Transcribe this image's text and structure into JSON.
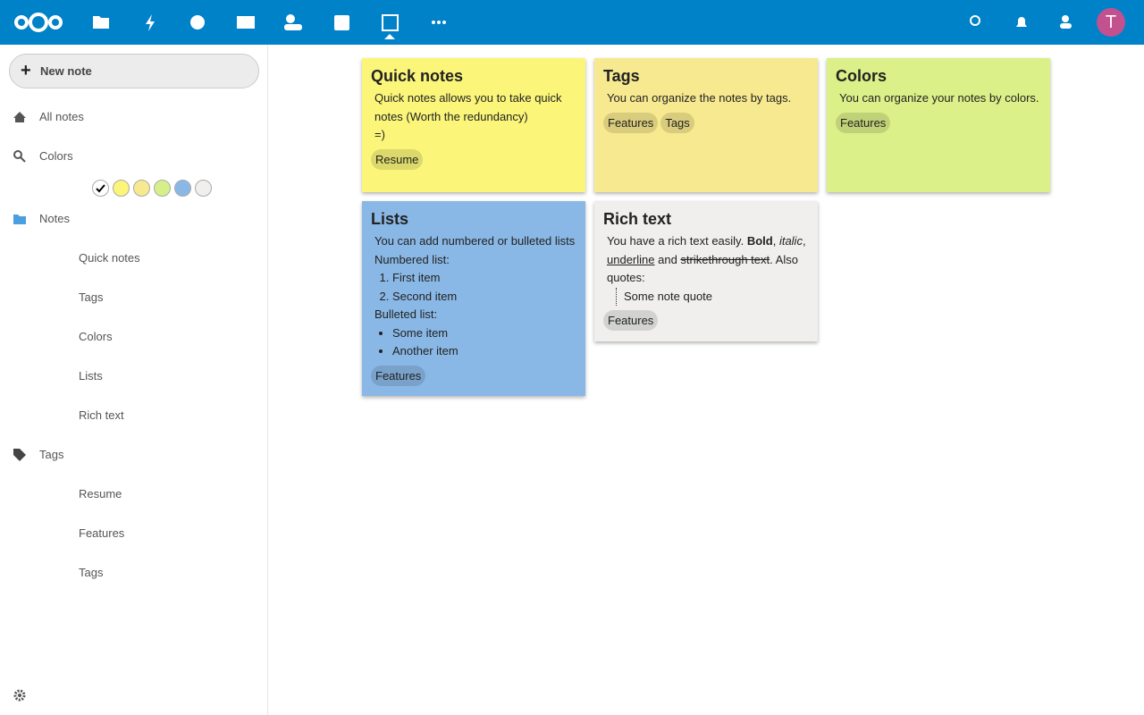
{
  "header": {
    "avatar": "T"
  },
  "sidebar": {
    "new_note": "New note",
    "all_notes": "All notes",
    "colors": "Colors",
    "swatches": [
      "#ffffff",
      "#fbf67a",
      "#f7e98f",
      "#d7ef88",
      "#8ab8e6",
      "#f0efee"
    ],
    "notes": "Notes",
    "note_links": [
      "Quick notes",
      "Tags",
      "Colors",
      "Lists",
      "Rich text"
    ],
    "tags": "Tags",
    "tag_links": [
      "Resume",
      "Features",
      "Tags"
    ]
  },
  "notes": [
    {
      "title": "Quick notes",
      "color": "#fbf67a",
      "content": [
        {
          "type": "p",
          "text": "Quick notes allows you to take quick notes (Worth the redundancy)"
        },
        {
          "type": "p",
          "text": "=)"
        }
      ],
      "tags": [
        "Resume"
      ]
    },
    {
      "title": "Tags",
      "color": "#f7e98f",
      "content": [
        {
          "type": "p",
          "text": "You can organize the notes by tags."
        }
      ],
      "tags": [
        "Features",
        "Tags"
      ]
    },
    {
      "title": "Colors",
      "color": "#dbf088",
      "content": [
        {
          "type": "p",
          "text": "You can organize your notes by colors."
        }
      ],
      "tags": [
        "Features"
      ]
    },
    {
      "title": "Lists",
      "color": "#8ab8e6",
      "content": [
        {
          "type": "p",
          "text": "You can add numbered or bulleted lists"
        },
        {
          "type": "p",
          "text": "Numbered list:"
        },
        {
          "type": "ol",
          "items": [
            "First item",
            "Second item"
          ]
        },
        {
          "type": "p",
          "text": "Bulleted list:"
        },
        {
          "type": "ul",
          "items": [
            "Some item",
            "Another item"
          ]
        }
      ],
      "tags": [
        "Features"
      ]
    },
    {
      "title": "Rich text",
      "color": "#f0efee",
      "content": [
        {
          "type": "p",
          "parts": [
            {
              "text": "You have a rich text easily. "
            },
            {
              "text": "Bold",
              "style": "bold"
            },
            {
              "text": ", "
            },
            {
              "text": "italic",
              "style": "italic"
            },
            {
              "text": ", "
            },
            {
              "text": "underline",
              "style": "underline"
            },
            {
              "text": " and "
            },
            {
              "text": "strikethrough text",
              "style": "strike"
            },
            {
              "text": ". Also quotes:"
            }
          ]
        },
        {
          "type": "quote",
          "text": "Some note quote"
        }
      ],
      "tags": [
        "Features"
      ]
    }
  ]
}
